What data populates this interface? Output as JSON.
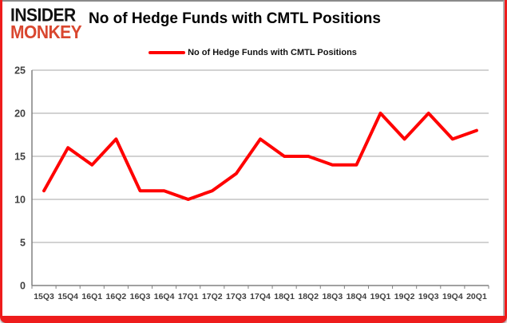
{
  "logo": {
    "line1": "INSIDER",
    "line2": "MONKEY"
  },
  "title": "No of Hedge Funds with CMTL Positions",
  "legend": {
    "label": "No of Hedge Funds with CMTL Positions"
  },
  "colors": {
    "line": "#ff0000",
    "frame_border": "#ee1c1c",
    "chart_border": "#8a8a8a",
    "grid": "#a6a6a6",
    "axis": "#808080",
    "tick_label": "#404040",
    "title": "#000000",
    "logo_black": "#111111",
    "logo_red": "#d9472f"
  },
  "chart_data": {
    "type": "line",
    "title": "No of Hedge Funds with CMTL Positions",
    "categories": [
      "15Q3",
      "15Q4",
      "16Q1",
      "16Q2",
      "16Q3",
      "16Q4",
      "17Q1",
      "17Q2",
      "17Q3",
      "17Q4",
      "18Q1",
      "18Q2",
      "18Q3",
      "18Q4",
      "19Q1",
      "19Q2",
      "19Q3",
      "19Q4",
      "20Q1"
    ],
    "series": [
      {
        "name": "No of Hedge Funds with CMTL Positions",
        "color": "#ff0000",
        "values": [
          11,
          16,
          14,
          17,
          11,
          11,
          10,
          11,
          13,
          17,
          15,
          15,
          14,
          14,
          20,
          17,
          20,
          17,
          18
        ]
      }
    ],
    "xlabel": "",
    "ylabel": "",
    "ylim": [
      0,
      25
    ],
    "yticks": [
      0,
      5,
      10,
      15,
      20,
      25
    ],
    "grid": true,
    "legend_position": "top"
  }
}
